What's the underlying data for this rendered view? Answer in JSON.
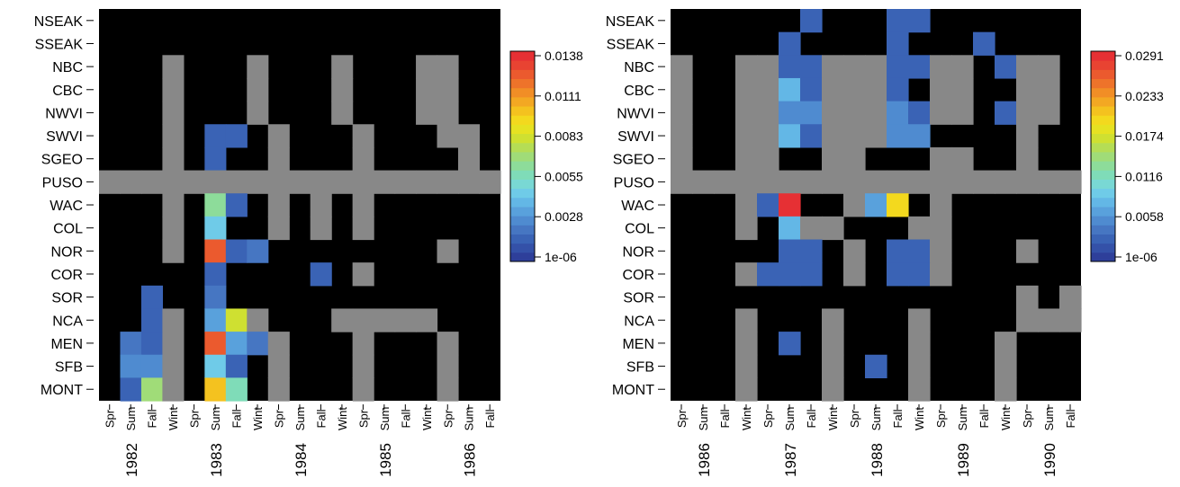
{
  "chart_data": [
    {
      "type": "heatmap",
      "title": "",
      "xlabel": "",
      "ylabel": "",
      "rows": [
        "NSEAK",
        "SSEAK",
        "NBC",
        "CBC",
        "NWVI",
        "SWVI",
        "SGEO",
        "PUSO",
        "WAC",
        "COL",
        "NOR",
        "COR",
        "SOR",
        "NCA",
        "MEN",
        "SFB",
        "MONT"
      ],
      "columns": [
        "Spr",
        "Sum",
        "Fall",
        "Wint",
        "Spr",
        "Sum",
        "Fall",
        "Wint",
        "Spr",
        "Sum",
        "Fall",
        "Wint",
        "Spr",
        "Sum",
        "Fall",
        "Wint",
        "Spr",
        "Sum",
        "Fall"
      ],
      "year_labels": [
        {
          "label": "1982",
          "col": 1
        },
        {
          "label": "1983",
          "col": 5
        },
        {
          "label": "1984",
          "col": 9
        },
        {
          "label": "1985",
          "col": 13
        },
        {
          "label": "1986",
          "col": 17
        }
      ],
      "legend": {
        "tick_labels": [
          "0.0138",
          "0.0111",
          "0.0083",
          "0.0055",
          "0.0028",
          "1e-06"
        ],
        "max": 0.0138,
        "min": 1e-06
      },
      "legend_placement": "right",
      "colors": {
        "background": "#000000",
        "not_sampled": "#888888"
      },
      "code_legend": "B = black (no data), G = grey (not sampled), number = value",
      "cells": [
        "BBBBBBBBBBBBBBBBBBB",
        "BBBBBBBBBBBBBBBBBBB",
        "BBBGBBBGBBBGBBBGGBB",
        "BBBGBBBGBBBGBBBGGBB",
        "BBBGBBBGBBBGBBBGGBB",
        "BBBGB0.0015 0.0012BGBBBGBBBGGBB",
        "BBBGB0.001BBGBBBGBBBBGBB",
        "GGGGGGGGGGGGGGGGGGG",
        "BBBGB0.0065 0.0013BGBGBGBBBBBBB",
        "BBBGB0.0045BBGBGBGBBBBBBB",
        "BBBGB0.0128 0.0012 0.002BBBBBBBBGBBB",
        "BBBBB0.001BBBB0.0011BGBBBBBBB",
        "BB0.0012BB0.0018BBBBBBBBBBBBB",
        "BB0.0011GB0.003 0.008GBBBGGGGGBBB",
        "B0.0018 0.0011GB0.0128 0.0033 0.0018GBBBGBBBGBBB",
        "B0.0025 0.0025GB0.0045 0.0012BGBBBGBBBGBBB",
        "B0.0015 0.0072GB0.0098 0.0058BGBBBGBBBGBBB"
      ]
    },
    {
      "type": "heatmap",
      "title": "",
      "xlabel": "",
      "ylabel": "",
      "rows": [
        "NSEAK",
        "SSEAK",
        "NBC",
        "CBC",
        "NWVI",
        "SWVI",
        "SGEO",
        "PUSO",
        "WAC",
        "COL",
        "NOR",
        "COR",
        "SOR",
        "NCA",
        "MEN",
        "SFB",
        "MONT"
      ],
      "columns": [
        "Spr",
        "Sum",
        "Fall",
        "Wint",
        "Spr",
        "Sum",
        "Fall",
        "Wint",
        "Spr",
        "Sum",
        "Fall",
        "Wint",
        "Spr",
        "Sum",
        "Fall",
        "Wint",
        "Spr",
        "Sum",
        "Fall"
      ],
      "year_labels": [
        {
          "label": "1986",
          "col": 1
        },
        {
          "label": "1987",
          "col": 5
        },
        {
          "label": "1988",
          "col": 9
        },
        {
          "label": "1989",
          "col": 13
        },
        {
          "label": "1990",
          "col": 17
        }
      ],
      "legend": {
        "tick_labels": [
          "0.0291",
          "0.0233",
          "0.0174",
          "0.0116",
          "0.0058",
          "1e-06"
        ],
        "max": 0.0291,
        "min": 1e-06
      },
      "legend_placement": "right",
      "colors": {
        "background": "#000000",
        "not_sampled": "#888888"
      },
      "code_legend": "B = black (no data), G = grey (not sampled), number = value",
      "cells": [
        "BBBBBB0.0025BBB0.0025 0.0025BBBBBBBB",
        "BBBBB0.0025BBBB0.0025BBB0.0025BBBBB",
        "GBBGG0.0025 0.0025GGG0.0025 0.0025GGB0.0025GGB0.0025",
        "GBBGG0.0075 0.0025GGG0.0025BGGBBGGBB",
        "GBBGG0.005 0.005GGG0.005 0.0025GGB0.0025GGBB",
        "GBBGG0.0075 0.0025GGG0.005 0.005BBBBGBB",
        "GBBGGBBGGBBBGGBBGBB",
        "GGGGGGGGGGGGGGGGGGG",
        "BBBG0.0025 0.029BBG0.0065 0.0195BGBBBBBBB",
        "BBBGB0.0085GGBBBGGBBBBBB",
        "BBBBB0.0025 0.0025BGB0.0025 0.0025GBBBGBB",
        "BBBG0.0025 0.0025 0.0025BGB0.0025 0.0025GBBBBBB",
        "BBBBBBBBBBBBBBBBGBG",
        "BBBGBBBGBBBGBBBBGGG",
        "BBBGB0.0025BGBBBGBBBGBB",
        "BBBGBBBGB0.0025BGBBBGBB",
        "BBBGBBBGBBBGBBBGBBB"
      ]
    }
  ]
}
